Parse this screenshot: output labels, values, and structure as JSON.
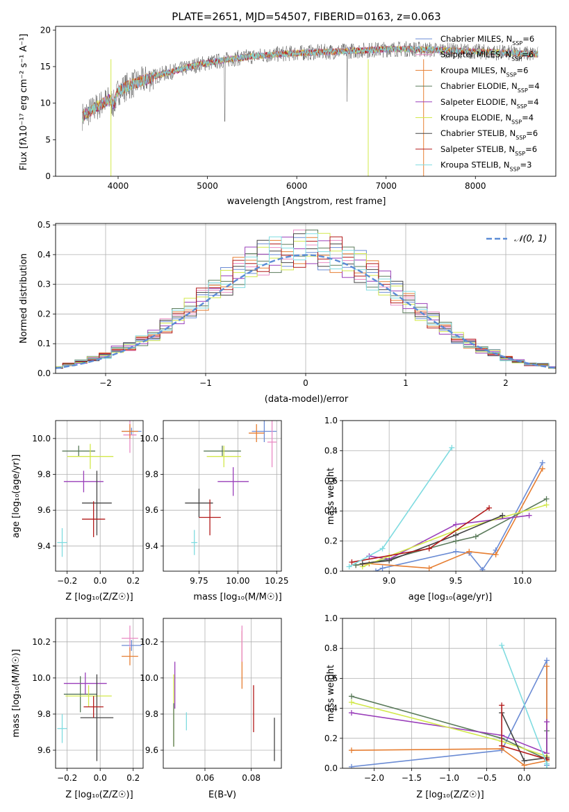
{
  "chart_data": [
    {
      "type": "line",
      "title": "PLATE=2651, MJD=54507, FIBERID=0163, z=0.063",
      "xlabel": "wavelength [Angstrom, rest frame]",
      "ylabel": "Flux [fλ10⁻¹⁷ erg cm⁻² s⁻¹ A⁻¹]",
      "xlim": [
        3300,
        8900
      ],
      "ylim": [
        0,
        20.5
      ],
      "xticks": [
        "4000",
        "5000",
        "6000",
        "7000",
        "8000"
      ],
      "yticks": [
        "0",
        "5",
        "10",
        "15",
        "20"
      ],
      "legend_position": "right",
      "spectrum_anchors": {
        "x": [
          3600,
          3700,
          3800,
          3900,
          3950,
          4000,
          4100,
          4300,
          4500,
          4700,
          4900,
          5100,
          5300,
          5500,
          5700,
          5900,
          6100,
          6300,
          6500,
          6700,
          6900,
          7100,
          7300,
          7500,
          7700,
          7900,
          8100,
          8300,
          8500,
          8700
        ],
        "y": [
          8.2,
          9.0,
          9.8,
          10.5,
          9.8,
          11.6,
          12.3,
          13.2,
          14.0,
          14.6,
          15.3,
          15.7,
          16.1,
          16.4,
          16.6,
          16.8,
          16.9,
          17.0,
          17.1,
          17.2,
          17.3,
          17.4,
          17.4,
          17.3,
          17.2,
          17.1,
          17.0,
          16.9,
          16.8,
          16.7
        ]
      },
      "series": [
        {
          "label": "Chabrier MILES, N",
          "sub": "SSP",
          "suffix": "=6",
          "color": "#6a8bd4"
        },
        {
          "label": "Salpeter MILES, N",
          "sub": "SSP",
          "suffix": "=6",
          "color": "#e98ac4"
        },
        {
          "label": "Kroupa MILES, N",
          "sub": "SSP",
          "suffix": "=6",
          "color": "#e67e32"
        },
        {
          "label": "Chabrier ELODIE, N",
          "sub": "SSP",
          "suffix": "=4",
          "color": "#5a7a5a"
        },
        {
          "label": "Salpeter ELODIE, N",
          "sub": "SSP",
          "suffix": "=4",
          "color": "#9a3fba"
        },
        {
          "label": "Kroupa ELODIE, N",
          "sub": "SSP",
          "suffix": "=4",
          "color": "#d2e84a"
        },
        {
          "label": "Chabrier STELIB, N",
          "sub": "SSP",
          "suffix": "=6",
          "color": "#444444"
        },
        {
          "label": "Salpeter STELIB, N",
          "sub": "SSP",
          "suffix": "=6",
          "color": "#b21818"
        },
        {
          "label": "Kroupa STELIB, N",
          "sub": "SSP",
          "suffix": "=3",
          "color": "#7fdbe0"
        }
      ]
    },
    {
      "type": "bar",
      "xlabel": "(data-model)/error",
      "ylabel": "Normed distribution",
      "xlim": [
        -2.5,
        2.5
      ],
      "ylim": [
        0,
        0.505
      ],
      "xticks": [
        "−2",
        "−1",
        "0",
        "1",
        "2"
      ],
      "yticks": [
        "0.0",
        "0.1",
        "0.2",
        "0.3",
        "0.4",
        "0.5"
      ],
      "legend": "𝒩(0, 1)",
      "legend_position": "top-right",
      "gaussian_color": "#5b8bd6",
      "histogram_approx": [
        0.02,
        0.03,
        0.04,
        0.05,
        0.06,
        0.08,
        0.09,
        0.11,
        0.13,
        0.16,
        0.19,
        0.22,
        0.25,
        0.28,
        0.31,
        0.34,
        0.37,
        0.39,
        0.4,
        0.41,
        0.42,
        0.42,
        0.41,
        0.4,
        0.38,
        0.36,
        0.33,
        0.3,
        0.27,
        0.24,
        0.21,
        0.18,
        0.15,
        0.12,
        0.1,
        0.08,
        0.07,
        0.05,
        0.04,
        0.03,
        0.03,
        0.02
      ]
    },
    {
      "type": "scatter",
      "xlabel": "Z [log₁₀(Z/Z☉)]",
      "ylabel": "age  [log₁₀(age/yr)]",
      "xlim": [
        -0.27,
        0.26
      ],
      "ylim": [
        9.26,
        10.1
      ],
      "xticks": [
        "−0.2",
        "0.0",
        "0.2"
      ],
      "yticks": [
        "9.4",
        "9.6",
        "9.8",
        "10.0"
      ],
      "points": [
        {
          "x": 0.19,
          "y": 10.04,
          "ex": 0.06,
          "ey": 0.02,
          "c": 0
        },
        {
          "x": 0.18,
          "y": 10.02,
          "ex": 0.04,
          "ey": 0.1,
          "c": 1
        },
        {
          "x": 0.18,
          "y": 10.04,
          "ex": 0.05,
          "ey": 0.04,
          "c": 2
        },
        {
          "x": -0.13,
          "y": 9.93,
          "ex": 0.1,
          "ey": 0.03,
          "c": 3
        },
        {
          "x": -0.1,
          "y": 9.76,
          "ex": 0.12,
          "ey": 0.06,
          "c": 4
        },
        {
          "x": -0.06,
          "y": 9.9,
          "ex": 0.14,
          "ey": 0.07,
          "c": 5
        },
        {
          "x": -0.02,
          "y": 9.64,
          "ex": 0.09,
          "ey": 0.18,
          "c": 6
        },
        {
          "x": -0.04,
          "y": 9.55,
          "ex": 0.07,
          "ey": 0.1,
          "c": 7
        },
        {
          "x": -0.23,
          "y": 9.42,
          "ex": 0.03,
          "ey": 0.08,
          "c": 8
        }
      ]
    },
    {
      "type": "scatter",
      "xlabel": "mass [log₁₀(M/M☉)]",
      "ylabel": "",
      "xlim": [
        9.52,
        10.28
      ],
      "ylim": [
        9.26,
        10.1
      ],
      "xticks": [
        "9.75",
        "10.00",
        "10.25"
      ],
      "yticks": [
        "9.4",
        "9.6",
        "9.8",
        "10.0"
      ],
      "points": [
        {
          "x": 10.17,
          "y": 10.04,
          "ex": 0.08,
          "ey": 0.06,
          "c": 0
        },
        {
          "x": 10.22,
          "y": 9.98,
          "ex": 0.03,
          "ey": 0.14,
          "c": 1
        },
        {
          "x": 10.12,
          "y": 10.03,
          "ex": 0.05,
          "ey": 0.05,
          "c": 2
        },
        {
          "x": 9.9,
          "y": 9.93,
          "ex": 0.12,
          "ey": 0.03,
          "c": 3
        },
        {
          "x": 9.97,
          "y": 9.76,
          "ex": 0.1,
          "ey": 0.08,
          "c": 4
        },
        {
          "x": 9.91,
          "y": 9.9,
          "ex": 0.11,
          "ey": 0.06,
          "c": 5
        },
        {
          "x": 9.75,
          "y": 9.64,
          "ex": 0.09,
          "ey": 0.08,
          "c": 6
        },
        {
          "x": 9.82,
          "y": 9.56,
          "ex": 0.07,
          "ey": 0.1,
          "c": 7
        },
        {
          "x": 9.72,
          "y": 9.42,
          "ex": 0.02,
          "ey": 0.07,
          "c": 8
        }
      ]
    },
    {
      "type": "line",
      "xlabel": "age  [log₁₀(age/yr)]",
      "ylabel": "mass weight",
      "xlim": [
        8.65,
        10.25
      ],
      "ylim": [
        0,
        1
      ],
      "xticks": [
        "9.0",
        "9.5",
        "10.0"
      ],
      "yticks": [
        "0.0",
        "0.2",
        "0.4",
        "0.6",
        "0.8",
        "1.0"
      ],
      "series": [
        {
          "c": 0,
          "x": [
            8.9,
            8.95,
            9.5,
            9.6,
            9.7,
            9.8,
            10.15
          ],
          "y": [
            0.0,
            0.02,
            0.13,
            0.12,
            0.01,
            0.14,
            0.72
          ]
        },
        {
          "c": 2,
          "x": [
            8.75,
            8.85,
            9.3,
            9.6,
            9.8,
            10.15
          ],
          "y": [
            0.04,
            0.05,
            0.02,
            0.13,
            0.11,
            0.68
          ]
        },
        {
          "c": 3,
          "x": [
            8.75,
            9.0,
            9.5,
            9.65,
            10.18
          ],
          "y": [
            0.04,
            0.08,
            0.2,
            0.23,
            0.48
          ]
        },
        {
          "c": 4,
          "x": [
            8.85,
            9.0,
            9.5,
            10.05
          ],
          "y": [
            0.1,
            0.08,
            0.31,
            0.37
          ]
        },
        {
          "c": 5,
          "x": [
            8.8,
            9.0,
            9.5,
            10.18
          ],
          "y": [
            0.03,
            0.1,
            0.27,
            0.44
          ]
        },
        {
          "c": 6,
          "x": [
            8.8,
            9.0,
            9.5,
            9.85
          ],
          "y": [
            0.05,
            0.07,
            0.24,
            0.37
          ]
        },
        {
          "c": 7,
          "x": [
            8.72,
            9.3,
            9.75
          ],
          "y": [
            0.06,
            0.15,
            0.42
          ]
        },
        {
          "c": 8,
          "x": [
            8.7,
            8.95,
            9.47
          ],
          "y": [
            0.03,
            0.15,
            0.82
          ]
        }
      ]
    },
    {
      "type": "scatter",
      "xlabel": "Z [log₁₀(Z/Z☉)]",
      "ylabel": "mass [log₁₀(M/M☉)]",
      "xlim": [
        -0.27,
        0.26
      ],
      "ylim": [
        9.5,
        10.33
      ],
      "xticks": [
        "−0.2",
        "0.0",
        "0.2"
      ],
      "yticks": [
        "9.6",
        "9.8",
        "10.0",
        "10.2"
      ],
      "points": [
        {
          "x": 0.19,
          "y": 10.18,
          "ex": 0.06,
          "ey": 0.03,
          "c": 0
        },
        {
          "x": 0.18,
          "y": 10.22,
          "ex": 0.05,
          "ey": 0.07,
          "c": 1
        },
        {
          "x": 0.18,
          "y": 10.12,
          "ex": 0.05,
          "ey": 0.05,
          "c": 2
        },
        {
          "x": -0.12,
          "y": 9.91,
          "ex": 0.1,
          "ey": 0.1,
          "c": 3
        },
        {
          "x": -0.09,
          "y": 9.97,
          "ex": 0.13,
          "ey": 0.06,
          "c": 4
        },
        {
          "x": -0.07,
          "y": 9.9,
          "ex": 0.14,
          "ey": 0.06,
          "c": 5
        },
        {
          "x": -0.02,
          "y": 9.78,
          "ex": 0.1,
          "ey": 0.24,
          "c": 6
        },
        {
          "x": -0.04,
          "y": 9.84,
          "ex": 0.06,
          "ey": 0.06,
          "c": 7
        },
        {
          "x": -0.23,
          "y": 9.72,
          "ex": 0.03,
          "ey": 0.08,
          "c": 8
        }
      ]
    },
    {
      "type": "scatter",
      "xlabel": "E(B-V)",
      "ylabel": "",
      "xlim": [
        0.042,
        0.093
      ],
      "ylim": [
        9.5,
        10.33
      ],
      "xticks": [
        "0.06",
        "0.08"
      ],
      "yticks": [
        "9.6",
        "9.8",
        "10.0",
        "10.2"
      ],
      "points": [
        {
          "x": 0.0465,
          "y": 9.82,
          "ex": 0,
          "ey": 0.2,
          "c": 5
        },
        {
          "x": 0.047,
          "y": 9.96,
          "ex": 0,
          "ey": 0.13,
          "c": 4
        },
        {
          "x": 0.0465,
          "y": 9.74,
          "ex": 0,
          "ey": 0.12,
          "c": 3
        },
        {
          "x": 0.052,
          "y": 9.76,
          "ex": 0,
          "ey": 0.05,
          "c": 8
        },
        {
          "x": 0.076,
          "y": 10.1,
          "ex": 0,
          "ey": 0.16,
          "c": 2
        },
        {
          "x": 0.076,
          "y": 10.19,
          "ex": 0,
          "ey": 0.1,
          "c": 1
        },
        {
          "x": 0.081,
          "y": 9.83,
          "ex": 0,
          "ey": 0.13,
          "c": 7
        },
        {
          "x": 0.09,
          "y": 9.66,
          "ex": 0,
          "ey": 0.12,
          "c": 6
        }
      ]
    },
    {
      "type": "line",
      "xlabel": "Z [log₁₀(Z/Z☉)]",
      "ylabel": "mass weight",
      "xlim": [
        -2.42,
        0.42
      ],
      "ylim": [
        0,
        1
      ],
      "xticks": [
        "−2.0",
        "−1.5",
        "−1.0",
        "−0.5",
        "0.0"
      ],
      "yticks": [
        "0.0",
        "0.2",
        "0.4",
        "0.6",
        "0.8",
        "1.0"
      ],
      "series": [
        {
          "c": 0,
          "x": [
            -2.3,
            -0.3,
            0.3,
            0.3
          ],
          "y": [
            0.01,
            0.12,
            0.72,
            0.02
          ]
        },
        {
          "c": 2,
          "x": [
            -2.3,
            -0.3,
            0.0,
            0.3,
            0.3
          ],
          "y": [
            0.12,
            0.13,
            0.02,
            0.05,
            0.68
          ]
        },
        {
          "c": 3,
          "x": [
            -2.3,
            -0.3,
            0.3,
            0.3
          ],
          "y": [
            0.48,
            0.2,
            0.06,
            0.25
          ]
        },
        {
          "c": 4,
          "x": [
            -2.3,
            -0.3,
            0.3,
            0.3
          ],
          "y": [
            0.37,
            0.22,
            0.1,
            0.31
          ]
        },
        {
          "c": 5,
          "x": [
            -2.3,
            -0.3,
            0.3
          ],
          "y": [
            0.44,
            0.18,
            0.08
          ]
        },
        {
          "c": 6,
          "x": [
            -0.3,
            0.0,
            0.3
          ],
          "y": [
            0.37,
            0.05,
            0.07
          ]
        },
        {
          "c": 7,
          "x": [
            -0.3,
            -0.3,
            0.3
          ],
          "y": [
            0.42,
            0.15,
            0.06
          ]
        },
        {
          "c": 8,
          "x": [
            -0.3,
            0.3,
            0.3
          ],
          "y": [
            0.82,
            0.03,
            0.0
          ]
        }
      ]
    }
  ]
}
